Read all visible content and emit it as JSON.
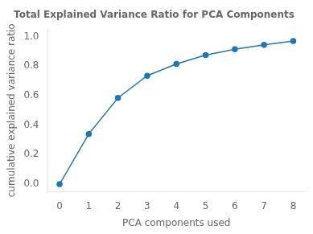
{
  "chart_data": {
    "type": "line",
    "title": "Total Explained Variance Ratio for PCA Components",
    "xlabel": "PCA components used",
    "ylabel": "cumulative explained variance ratio",
    "x": [
      0,
      1,
      2,
      3,
      4,
      5,
      6,
      7,
      8
    ],
    "values": [
      0.0,
      0.34,
      0.585,
      0.735,
      0.815,
      0.875,
      0.915,
      0.945,
      0.97
    ],
    "color": "#1f77b4",
    "marker": "circle",
    "xlim": [
      -0.4,
      8.4
    ],
    "ylim": [
      -0.05,
      1.05
    ],
    "xticks": [
      0,
      1,
      2,
      3,
      4,
      5,
      6,
      7,
      8
    ],
    "yticks": [
      {
        "value": 0.0,
        "label": "0.0"
      },
      0.2,
      0.4,
      0.6,
      0.8,
      {
        "value": 1.0,
        "label": "1.0"
      }
    ],
    "grid": false
  }
}
